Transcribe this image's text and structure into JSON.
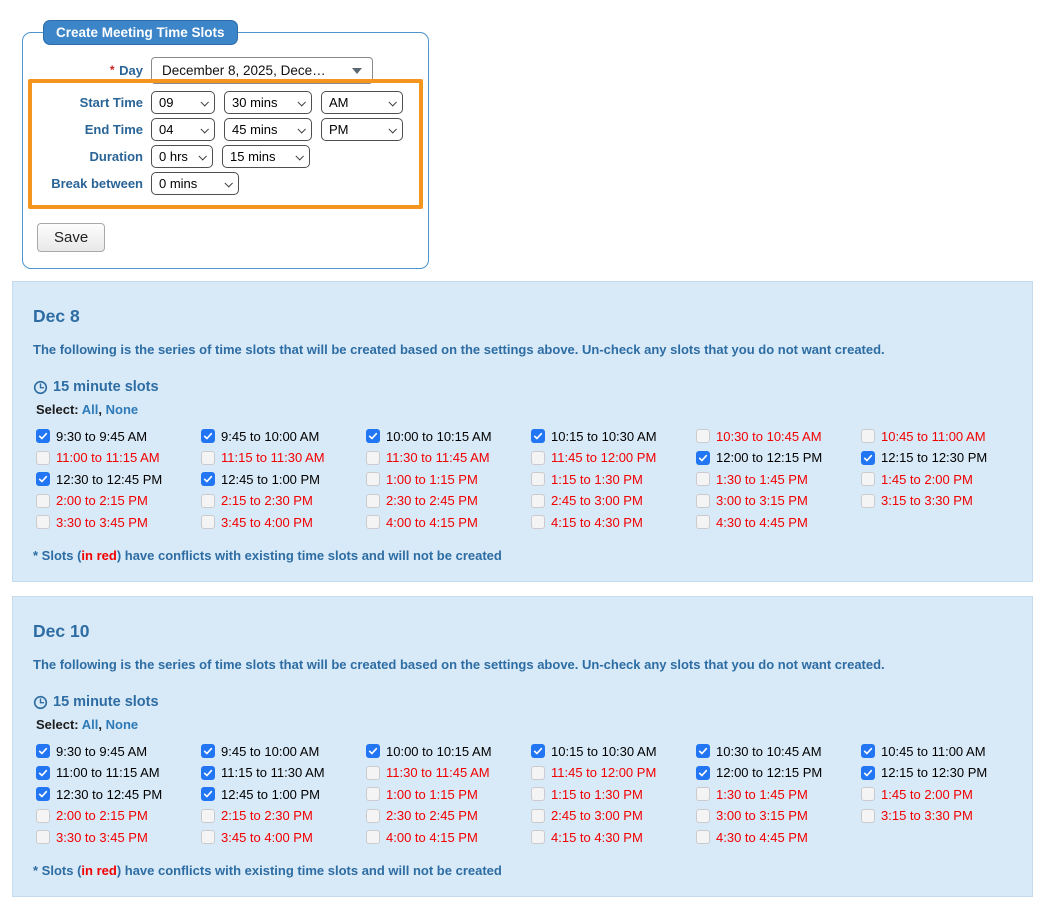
{
  "colors": {
    "panel_bg": "#d8e9f7",
    "heading_blue": "#2d6da3",
    "form_label_blue": "#2a6496",
    "link_blue": "#2d7ab8",
    "conflict_red": "#f20000",
    "checkbox_blue": "#2276f3",
    "highlight_orange": "#f5941e",
    "legend_bg": "#3b85c8"
  },
  "form": {
    "legend": "Create Meeting Time Slots",
    "day": {
      "required_mark": "*",
      "label": "Day",
      "value": "December 8, 2025, Dece…"
    },
    "start_time": {
      "label": "Start Time",
      "hour": "09",
      "minute": "30 mins",
      "ampm": "AM"
    },
    "end_time": {
      "label": "End Time",
      "hour": "04",
      "minute": "45 mins",
      "ampm": "PM"
    },
    "duration": {
      "label": "Duration",
      "hours": "0 hrs",
      "minutes": "15 mins"
    },
    "break_between": {
      "label": "Break between",
      "value": "0 mins"
    },
    "save_label": "Save"
  },
  "panel_common": {
    "intro": "The following is the series of time slots that will be created based on the settings above. Un-check any slots that you do not want created.",
    "slots_heading": "15 minute slots",
    "select_label": "Select:",
    "select_all": "All",
    "select_separator": ",",
    "select_none": "None",
    "footnote_prefix": "* Slots (",
    "footnote_red": "in red",
    "footnote_suffix": ") have conflicts with existing time slots and will not be created"
  },
  "panels": [
    {
      "title": "Dec 8",
      "slots": [
        {
          "label": "9:30 to 9:45 AM",
          "checked": true,
          "conflict": false
        },
        {
          "label": "9:45 to 10:00 AM",
          "checked": true,
          "conflict": false
        },
        {
          "label": "10:00 to 10:15 AM",
          "checked": true,
          "conflict": false
        },
        {
          "label": "10:15 to 10:30 AM",
          "checked": true,
          "conflict": false
        },
        {
          "label": "10:30 to 10:45 AM",
          "checked": false,
          "conflict": true
        },
        {
          "label": "10:45 to 11:00 AM",
          "checked": false,
          "conflict": true
        },
        {
          "label": "11:00 to 11:15 AM",
          "checked": false,
          "conflict": true
        },
        {
          "label": "11:15 to 11:30 AM",
          "checked": false,
          "conflict": true
        },
        {
          "label": "11:30 to 11:45 AM",
          "checked": false,
          "conflict": true
        },
        {
          "label": "11:45 to 12:00 PM",
          "checked": false,
          "conflict": true
        },
        {
          "label": "12:00 to 12:15 PM",
          "checked": true,
          "conflict": false
        },
        {
          "label": "12:15 to 12:30 PM",
          "checked": true,
          "conflict": false
        },
        {
          "label": "12:30 to 12:45 PM",
          "checked": true,
          "conflict": false
        },
        {
          "label": "12:45 to 1:00 PM",
          "checked": true,
          "conflict": false
        },
        {
          "label": "1:00 to 1:15 PM",
          "checked": false,
          "conflict": true
        },
        {
          "label": "1:15 to 1:30 PM",
          "checked": false,
          "conflict": true
        },
        {
          "label": "1:30 to 1:45 PM",
          "checked": false,
          "conflict": true
        },
        {
          "label": "1:45 to 2:00 PM",
          "checked": false,
          "conflict": true
        },
        {
          "label": "2:00 to 2:15 PM",
          "checked": false,
          "conflict": true
        },
        {
          "label": "2:15 to 2:30 PM",
          "checked": false,
          "conflict": true
        },
        {
          "label": "2:30 to 2:45 PM",
          "checked": false,
          "conflict": true
        },
        {
          "label": "2:45 to 3:00 PM",
          "checked": false,
          "conflict": true
        },
        {
          "label": "3:00 to 3:15 PM",
          "checked": false,
          "conflict": true
        },
        {
          "label": "3:15 to 3:30 PM",
          "checked": false,
          "conflict": true
        },
        {
          "label": "3:30 to 3:45 PM",
          "checked": false,
          "conflict": true
        },
        {
          "label": "3:45 to 4:00 PM",
          "checked": false,
          "conflict": true
        },
        {
          "label": "4:00 to 4:15 PM",
          "checked": false,
          "conflict": true
        },
        {
          "label": "4:15 to 4:30 PM",
          "checked": false,
          "conflict": true
        },
        {
          "label": "4:30 to 4:45 PM",
          "checked": false,
          "conflict": true
        }
      ]
    },
    {
      "title": "Dec 10",
      "slots": [
        {
          "label": "9:30 to 9:45 AM",
          "checked": true,
          "conflict": false
        },
        {
          "label": "9:45 to 10:00 AM",
          "checked": true,
          "conflict": false
        },
        {
          "label": "10:00 to 10:15 AM",
          "checked": true,
          "conflict": false
        },
        {
          "label": "10:15 to 10:30 AM",
          "checked": true,
          "conflict": false
        },
        {
          "label": "10:30 to 10:45 AM",
          "checked": true,
          "conflict": false
        },
        {
          "label": "10:45 to 11:00 AM",
          "checked": true,
          "conflict": false
        },
        {
          "label": "11:00 to 11:15 AM",
          "checked": true,
          "conflict": false
        },
        {
          "label": "11:15 to 11:30 AM",
          "checked": true,
          "conflict": false
        },
        {
          "label": "11:30 to 11:45 AM",
          "checked": false,
          "conflict": true
        },
        {
          "label": "11:45 to 12:00 PM",
          "checked": false,
          "conflict": true
        },
        {
          "label": "12:00 to 12:15 PM",
          "checked": true,
          "conflict": false
        },
        {
          "label": "12:15 to 12:30 PM",
          "checked": true,
          "conflict": false
        },
        {
          "label": "12:30 to 12:45 PM",
          "checked": true,
          "conflict": false
        },
        {
          "label": "12:45 to 1:00 PM",
          "checked": true,
          "conflict": false
        },
        {
          "label": "1:00 to 1:15 PM",
          "checked": false,
          "conflict": true
        },
        {
          "label": "1:15 to 1:30 PM",
          "checked": false,
          "conflict": true
        },
        {
          "label": "1:30 to 1:45 PM",
          "checked": false,
          "conflict": true
        },
        {
          "label": "1:45 to 2:00 PM",
          "checked": false,
          "conflict": true
        },
        {
          "label": "2:00 to 2:15 PM",
          "checked": false,
          "conflict": true
        },
        {
          "label": "2:15 to 2:30 PM",
          "checked": false,
          "conflict": true
        },
        {
          "label": "2:30 to 2:45 PM",
          "checked": false,
          "conflict": true
        },
        {
          "label": "2:45 to 3:00 PM",
          "checked": false,
          "conflict": true
        },
        {
          "label": "3:00 to 3:15 PM",
          "checked": false,
          "conflict": true
        },
        {
          "label": "3:15 to 3:30 PM",
          "checked": false,
          "conflict": true
        },
        {
          "label": "3:30 to 3:45 PM",
          "checked": false,
          "conflict": true
        },
        {
          "label": "3:45 to 4:00 PM",
          "checked": false,
          "conflict": true
        },
        {
          "label": "4:00 to 4:15 PM",
          "checked": false,
          "conflict": true
        },
        {
          "label": "4:15 to 4:30 PM",
          "checked": false,
          "conflict": true
        },
        {
          "label": "4:30 to 4:45 PM",
          "checked": false,
          "conflict": true
        }
      ]
    }
  ]
}
